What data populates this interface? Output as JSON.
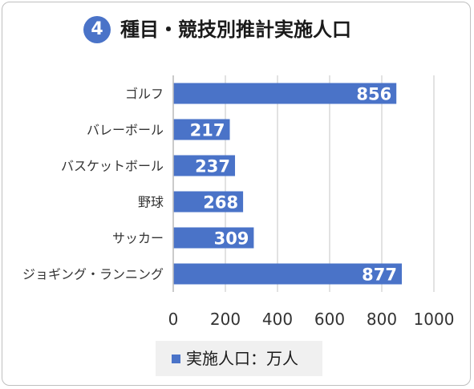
{
  "title": {
    "number": "4",
    "text": "種目・競技別推計実施人口"
  },
  "chart_data": {
    "type": "bar",
    "orientation": "horizontal",
    "categories": [
      "ゴルフ",
      "バレーボール",
      "バスケットボール",
      "野球",
      "サッカー",
      "ジョギング・ランニング"
    ],
    "series": [
      {
        "name": "実施人口：万人",
        "values": [
          856,
          217,
          237,
          268,
          309,
          877
        ],
        "color": "#4a73c8"
      }
    ],
    "data_labels": [
      "856",
      "217",
      "237",
      "268",
      "309",
      "877"
    ],
    "xlim": [
      0,
      1000
    ],
    "x_ticks": [
      0,
      200,
      400,
      600,
      800,
      1000
    ],
    "x_tick_labels": [
      "0",
      "200",
      "400",
      "600",
      "800",
      "1000"
    ],
    "grid": true,
    "legend_position": "bottom"
  }
}
